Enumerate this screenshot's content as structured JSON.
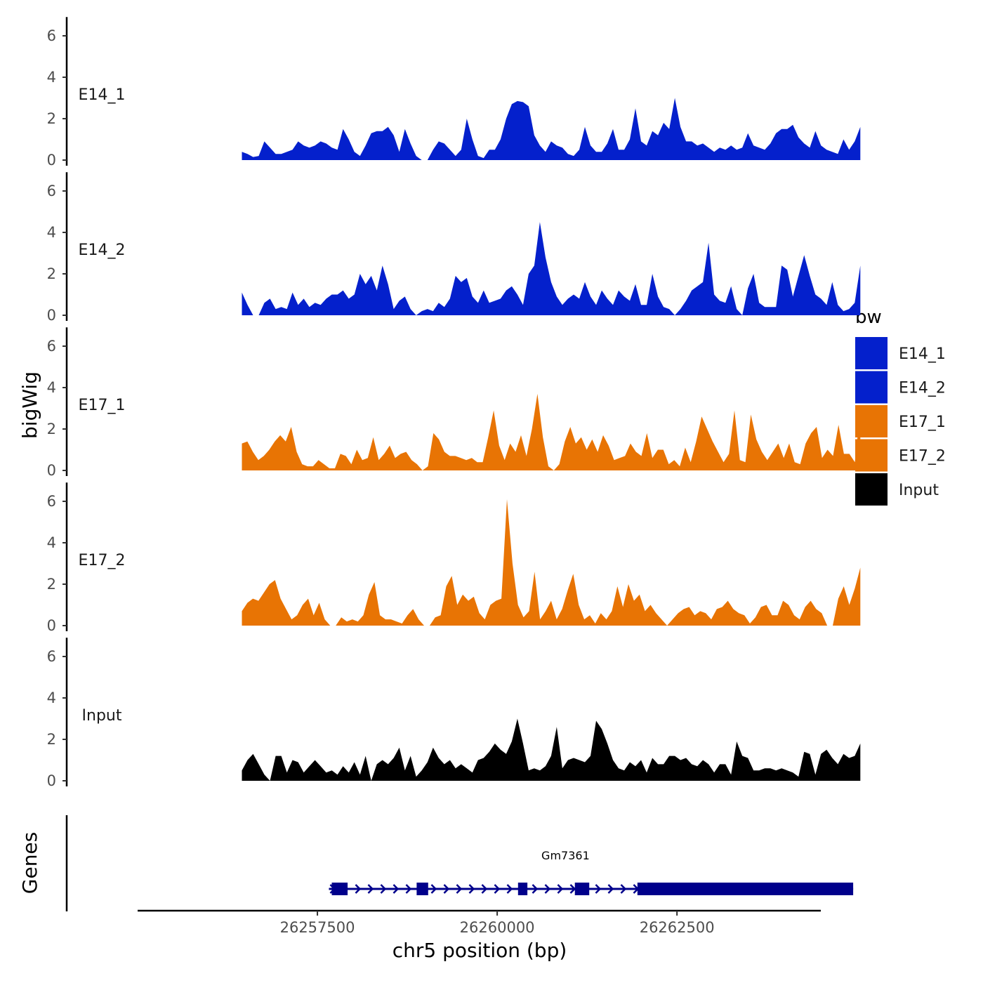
{
  "chart_data": {
    "type": "area",
    "ylabel": "bigWig",
    "xlabel": "chr5 position (bp)",
    "genes_label": "Genes",
    "ylim": [
      0,
      6.5
    ],
    "yticks": [
      0,
      2,
      4,
      6
    ],
    "ytick_labels": [
      "0",
      "2",
      "4",
      "6"
    ],
    "xlim": [
      26255000,
      26264500
    ],
    "xticks": [
      26257500,
      26260000,
      26262500
    ],
    "xtick_labels": [
      "26257500",
      "26260000",
      "26262500"
    ],
    "x_start": 26256450,
    "x_end": 26265050,
    "legend": {
      "title": "bw",
      "entries": [
        {
          "label": "E14_1",
          "color": "#0420CC"
        },
        {
          "label": "E14_2",
          "color": "#0420CC"
        },
        {
          "label": "E17_1",
          "color": "#E87404"
        },
        {
          "label": "E17_2",
          "color": "#E87404"
        },
        {
          "label": "Input",
          "color": "#000000"
        }
      ]
    },
    "series": [
      {
        "name": "E14_1",
        "color": "#0420CC",
        "values": [
          0.4,
          0.3,
          0.15,
          0.2,
          0.9,
          0.6,
          0.3,
          0.3,
          0.4,
          0.5,
          0.9,
          0.7,
          0.6,
          0.7,
          0.9,
          0.8,
          0.6,
          0.5,
          1.5,
          1.0,
          0.4,
          0.2,
          0.7,
          1.3,
          1.4,
          1.4,
          1.6,
          1.2,
          0.4,
          1.5,
          0.8,
          0.2,
          0,
          0,
          0.5,
          0.9,
          0.8,
          0.5,
          0.2,
          0.5,
          2.0,
          1.0,
          0.2,
          0.1,
          0.5,
          0.5,
          1.0,
          2.0,
          2.7,
          2.85,
          2.8,
          2.6,
          1.2,
          0.7,
          0.4,
          0.9,
          0.7,
          0.6,
          0.3,
          0.2,
          0.5,
          1.6,
          0.7,
          0.4,
          0.4,
          0.8,
          1.5,
          0.5,
          0.5,
          1.0,
          2.5,
          0.9,
          0.7,
          1.4,
          1.2,
          1.8,
          1.5,
          3.0,
          1.6,
          0.9,
          0.9,
          0.7,
          0.8,
          0.6,
          0.4,
          0.6,
          0.5,
          0.7,
          0.5,
          0.6,
          1.3,
          0.7,
          0.6,
          0.5,
          0.8,
          1.3,
          1.5,
          1.5,
          1.7,
          1.1,
          0.8,
          0.6,
          1.4,
          0.7,
          0.5,
          0.4,
          0.3,
          1.0,
          0.5,
          0.9,
          1.6
        ]
      },
      {
        "name": "E14_2",
        "color": "#0420CC",
        "values": [
          1.1,
          0.5,
          0,
          0,
          0.6,
          0.8,
          0.3,
          0.4,
          0.3,
          1.1,
          0.5,
          0.8,
          0.4,
          0.6,
          0.5,
          0.8,
          1.0,
          1.0,
          1.2,
          0.8,
          1.0,
          2.0,
          1.5,
          1.9,
          1.2,
          2.4,
          1.5,
          0.3,
          0.7,
          0.9,
          0.3,
          0,
          0.2,
          0.3,
          0.2,
          0.6,
          0.4,
          0.8,
          1.9,
          1.6,
          1.8,
          0.9,
          0.6,
          1.2,
          0.6,
          0.7,
          0.8,
          1.2,
          1.4,
          1.0,
          0.5,
          2.0,
          2.4,
          4.5,
          2.8,
          1.6,
          0.9,
          0.5,
          0.8,
          1.0,
          0.8,
          1.6,
          0.9,
          0.5,
          1.2,
          0.8,
          0.5,
          1.2,
          0.9,
          0.7,
          1.5,
          0.5,
          0.5,
          2.0,
          0.9,
          0.4,
          0.3,
          0,
          0.3,
          0.7,
          1.2,
          1.4,
          1.6,
          3.5,
          1.0,
          0.7,
          0.6,
          1.4,
          0.3,
          0,
          1.3,
          2.0,
          0.6,
          0.4,
          0.4,
          0.4,
          2.4,
          2.2,
          0.9,
          1.9,
          2.9,
          1.9,
          1.0,
          0.8,
          0.5,
          1.6,
          0.5,
          0.2,
          0.3,
          0.6,
          2.4
        ]
      },
      {
        "name": "E17_1",
        "color": "#E87404",
        "values": [
          1.3,
          1.4,
          0.9,
          0.5,
          0.7,
          1.0,
          1.4,
          1.7,
          1.4,
          2.1,
          0.9,
          0.3,
          0.2,
          0.2,
          0.5,
          0.3,
          0.1,
          0.1,
          0.8,
          0.7,
          0.3,
          1.0,
          0.5,
          0.6,
          1.6,
          0.5,
          0.8,
          1.2,
          0.6,
          0.8,
          0.9,
          0.5,
          0.3,
          0,
          0.2,
          1.8,
          1.5,
          0.9,
          0.7,
          0.7,
          0.6,
          0.5,
          0.6,
          0.4,
          0.4,
          1.6,
          2.9,
          1.2,
          0.5,
          1.3,
          0.9,
          1.7,
          0.7,
          2.0,
          3.7,
          1.6,
          0.2,
          0,
          0.3,
          1.4,
          2.1,
          1.3,
          1.6,
          1.0,
          1.5,
          0.9,
          1.7,
          1.2,
          0.5,
          0.6,
          0.7,
          1.3,
          0.9,
          0.7,
          1.8,
          0.6,
          1.0,
          1.0,
          0.3,
          0.5,
          0.2,
          1.1,
          0.4,
          1.4,
          2.6,
          2.0,
          1.4,
          0.9,
          0.4,
          0.8,
          2.9,
          0.5,
          0.4,
          2.7,
          1.5,
          0.9,
          0.5,
          0.9,
          1.3,
          0.6,
          1.3,
          0.4,
          0.3,
          1.3,
          1.8,
          2.1,
          0.6,
          1.0,
          0.7,
          2.2,
          0.8,
          0.8,
          0.4,
          2.9
        ]
      },
      {
        "name": "E17_2",
        "color": "#E87404",
        "values": [
          0.7,
          1.1,
          1.3,
          1.2,
          1.6,
          2.0,
          2.2,
          1.3,
          0.8,
          0.3,
          0.5,
          1.0,
          1.3,
          0.5,
          1.1,
          0.3,
          0,
          0,
          0.4,
          0.2,
          0.3,
          0.2,
          0.5,
          1.5,
          2.1,
          0.5,
          0.3,
          0.3,
          0.2,
          0.1,
          0.5,
          0.8,
          0.3,
          0,
          0,
          0.4,
          0.5,
          1.9,
          2.4,
          1.0,
          1.5,
          1.2,
          1.4,
          0.6,
          0.3,
          1.0,
          1.2,
          1.3,
          6.1,
          3.0,
          1.0,
          0.4,
          0.7,
          2.6,
          0.3,
          0.7,
          1.2,
          0.3,
          0.8,
          1.7,
          2.5,
          1.0,
          0.3,
          0.5,
          0.1,
          0.6,
          0.3,
          0.7,
          1.9,
          0.9,
          2.0,
          1.2,
          1.5,
          0.7,
          1.0,
          0.6,
          0.3,
          0,
          0.3,
          0.6,
          0.8,
          0.9,
          0.5,
          0.7,
          0.6,
          0.3,
          0.8,
          0.9,
          1.2,
          0.8,
          0.6,
          0.5,
          0.1,
          0.4,
          0.9,
          1.0,
          0.5,
          0.5,
          1.2,
          1.0,
          0.5,
          0.3,
          0.9,
          1.2,
          0.8,
          0.6,
          0,
          0,
          1.3,
          1.9,
          1.0,
          1.8,
          2.8
        ]
      },
      {
        "name": "Input",
        "color": "#000000",
        "values": [
          0.5,
          1.0,
          1.3,
          0.8,
          0.3,
          0,
          1.2,
          1.2,
          0.4,
          1.0,
          0.9,
          0.4,
          0.7,
          1.0,
          0.7,
          0.4,
          0.5,
          0.3,
          0.7,
          0.4,
          0.9,
          0.3,
          1.2,
          0,
          0.8,
          1.0,
          0.8,
          1.1,
          1.6,
          0.5,
          1.2,
          0.2,
          0.5,
          0.9,
          1.6,
          1.1,
          0.8,
          1.0,
          0.6,
          0.8,
          0.6,
          0.4,
          1.0,
          1.1,
          1.4,
          1.8,
          1.5,
          1.3,
          1.9,
          3.0,
          1.8,
          0.5,
          0.6,
          0.5,
          0.7,
          1.2,
          2.6,
          0.6,
          1.0,
          1.1,
          1.0,
          0.9,
          1.2,
          2.9,
          2.5,
          1.8,
          1.0,
          0.6,
          0.5,
          0.9,
          0.7,
          1.0,
          0.4,
          1.1,
          0.8,
          0.8,
          1.2,
          1.2,
          1.0,
          1.1,
          0.8,
          0.7,
          1.0,
          0.8,
          0.4,
          0.8,
          0.8,
          0.3,
          1.9,
          1.2,
          1.1,
          0.5,
          0.5,
          0.6,
          0.6,
          0.5,
          0.6,
          0.5,
          0.4,
          0.2,
          1.4,
          1.3,
          0.3,
          1.3,
          1.5,
          1.1,
          0.8,
          1.3,
          1.1,
          1.2,
          1.8
        ]
      }
    ],
    "gene": {
      "name": "Gm7361",
      "color": "#00008B",
      "start": 26257660,
      "end": 26264950,
      "exons": [
        [
          26257700,
          26257920
        ],
        [
          26258880,
          26259040
        ],
        [
          26260290,
          26260420
        ],
        [
          26261080,
          26261280
        ],
        [
          26261950,
          26264950
        ]
      ],
      "strand": "+"
    }
  }
}
